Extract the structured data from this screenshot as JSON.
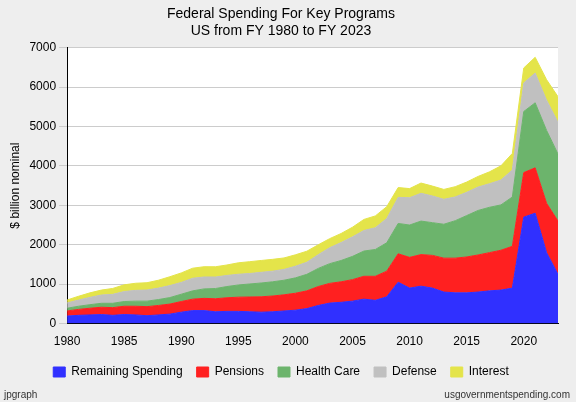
{
  "chart_data": {
    "type": "area",
    "title": "Federal Spending For Key Programs",
    "subtitle": "US from FY 1980 to FY 2023",
    "y_label": "$ billion nominal",
    "annotations": [
      "jpgraph",
      "usgovernmentspending.com"
    ],
    "x": [
      1980,
      1981,
      1982,
      1983,
      1984,
      1985,
      1986,
      1987,
      1988,
      1989,
      1990,
      1991,
      1992,
      1993,
      1994,
      1995,
      1996,
      1997,
      1998,
      1999,
      2000,
      2001,
      2002,
      2003,
      2004,
      2005,
      2006,
      2007,
      2008,
      2009,
      2010,
      2011,
      2012,
      2013,
      2014,
      2015,
      2016,
      2017,
      2018,
      2019,
      2020,
      2021,
      2022,
      2023
    ],
    "series": [
      {
        "name": "Remaining Spending",
        "color": "#3030ff",
        "values": [
          190,
          210,
          220,
          230,
          210,
          230,
          220,
          200,
          220,
          240,
          290,
          330,
          330,
          300,
          310,
          310,
          300,
          290,
          300,
          320,
          340,
          380,
          460,
          520,
          540,
          570,
          620,
          590,
          680,
          1050,
          900,
          950,
          900,
          800,
          780,
          780,
          800,
          830,
          850,
          900,
          2700,
          2800,
          1800,
          1250
        ]
      },
      {
        "name": "Pensions",
        "color": "#ff2020",
        "values": [
          130,
          150,
          170,
          185,
          195,
          210,
          220,
          230,
          240,
          255,
          270,
          290,
          310,
          330,
          345,
          360,
          375,
          390,
          400,
          410,
          430,
          450,
          480,
          500,
          520,
          545,
          580,
          610,
          650,
          720,
          780,
          800,
          830,
          860,
          880,
          910,
          940,
          970,
          1010,
          1060,
          1130,
          1150,
          1250,
          1350
        ]
      },
      {
        "name": "Health Care",
        "color": "#6cb46c",
        "values": [
          70,
          80,
          90,
          100,
          110,
          120,
          130,
          140,
          150,
          165,
          185,
          210,
          240,
          260,
          285,
          310,
          330,
          350,
          360,
          370,
          390,
          420,
          460,
          500,
          540,
          590,
          640,
          680,
          720,
          770,
          820,
          850,
          830,
          860,
          950,
          1050,
          1130,
          1150,
          1150,
          1250,
          1550,
          1650,
          1850,
          1700
        ]
      },
      {
        "name": "Defense",
        "color": "#c0c0c0",
        "values": [
          134,
          158,
          185,
          210,
          227,
          253,
          273,
          282,
          290,
          304,
          300,
          320,
          303,
          292,
          282,
          272,
          266,
          271,
          270,
          275,
          295,
          306,
          349,
          405,
          455,
          495,
          522,
          551,
          616,
          661,
          694,
          705,
          678,
          633,
          603,
          590,
          593,
          599,
          631,
          686,
          724,
          754,
          766,
          805
        ]
      },
      {
        "name": "Interest",
        "color": "#e4e44a",
        "values": [
          75,
          95,
          115,
          125,
          150,
          170,
          180,
          185,
          200,
          225,
          240,
          255,
          260,
          260,
          265,
          290,
          300,
          300,
          300,
          290,
          290,
          280,
          250,
          230,
          230,
          245,
          280,
          300,
          300,
          250,
          230,
          260,
          250,
          250,
          260,
          260,
          270,
          300,
          360,
          420,
          380,
          400,
          520,
          650
        ]
      }
    ],
    "xlim": [
      1980,
      2023
    ],
    "xticks": [
      1980,
      1985,
      1990,
      1995,
      2000,
      2005,
      2010,
      2015,
      2020
    ],
    "ylim": [
      0,
      7000
    ],
    "yticks": [
      0,
      1000,
      2000,
      3000,
      4000,
      5000,
      6000,
      7000
    ],
    "grid": true,
    "legend": "bottom",
    "stacked": true
  }
}
